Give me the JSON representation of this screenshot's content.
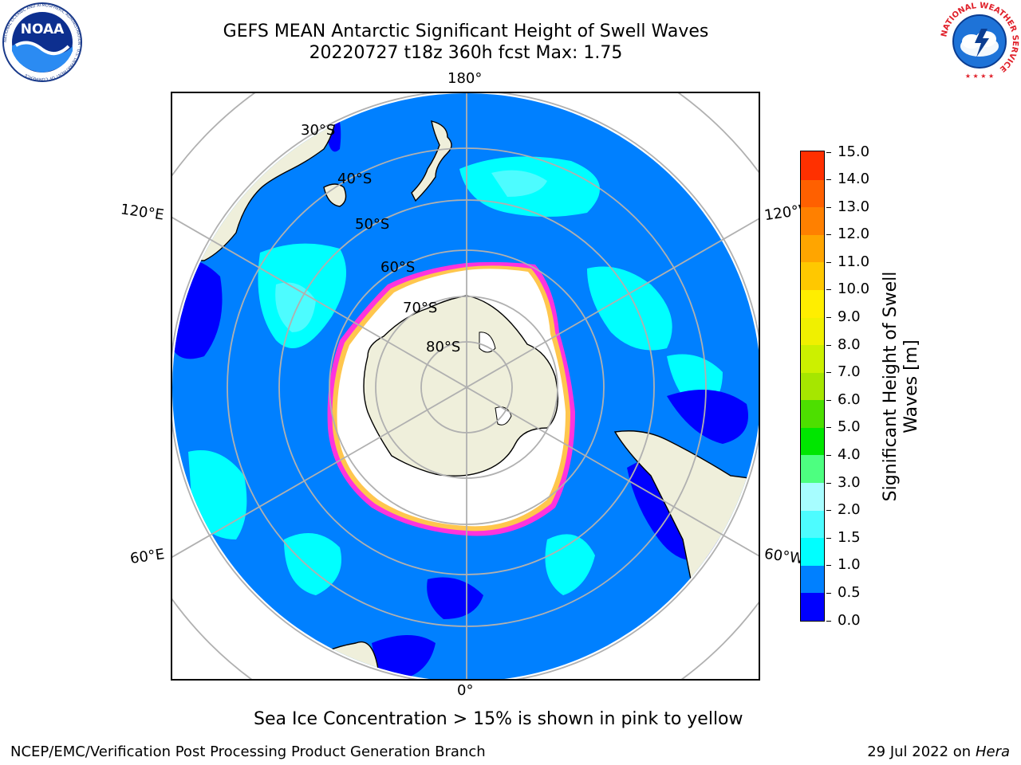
{
  "title": {
    "line1": "GEFS MEAN Antarctic Significant Height of Swell Waves",
    "line2": "20220727 t18z 360h fcst   Max: 1.75"
  },
  "logos": {
    "left": {
      "text": "NOAA",
      "ring_text": "NATIONAL OCEANIC AND ATMOSPHERIC ADMINISTRATION · U.S. DEPARTMENT OF COMMERCE",
      "icon": "noaa-logo"
    },
    "right": {
      "ring_text": "NATIONAL WEATHER SERVICE",
      "icon": "nws-logo"
    }
  },
  "map": {
    "projection": "south-polar-stereographic",
    "longitude_labels": {
      "top": "180°",
      "bottom": "0°",
      "upper_left": "120°E",
      "upper_right": "120°W",
      "lower_left": "60°E",
      "lower_right": "60°W"
    },
    "latitude_labels": [
      "30°S",
      "40°S",
      "50°S",
      "60°S",
      "70°S",
      "80°S"
    ],
    "colors": {
      "ocean_fill": "#0080ff",
      "land": "#efefdb",
      "ice_interior": "#ffffff",
      "ice_edge_pink": "#ff33dd",
      "ice_edge_yellow": "#ffc64d",
      "gridline": "#b0b0b0",
      "coast": "#000000"
    }
  },
  "colorbar": {
    "label": "Significant Height of Swell Waves [m]",
    "label_line1": "Significant Height of Swell",
    "label_line2": "Waves [m]",
    "ticks": [
      "0.0",
      "0.5",
      "1.0",
      "1.5",
      "2.0",
      "3.0",
      "4.0",
      "5.0",
      "6.0",
      "7.0",
      "8.0",
      "9.0",
      "10.0",
      "11.0",
      "12.0",
      "13.0",
      "14.0",
      "15.0"
    ],
    "colors": [
      "#0000ff",
      "#0080ff",
      "#00ffff",
      "#4dfcff",
      "#a7fdff",
      "#4dff80",
      "#00e600",
      "#4ddf00",
      "#a6e600",
      "#ccf000",
      "#f0f000",
      "#ffee00",
      "#ffc800",
      "#ffa500",
      "#ff8000",
      "#ff6000",
      "#ff3000",
      "#ff0000"
    ]
  },
  "footer": {
    "note": "Sea Ice Concentration > 15% is shown in pink to yellow",
    "left": "NCEP/EMC/Verification Post Processing Product Generation Branch",
    "right_date": "29 Jul 2022 on ",
    "right_host": "Hera"
  }
}
